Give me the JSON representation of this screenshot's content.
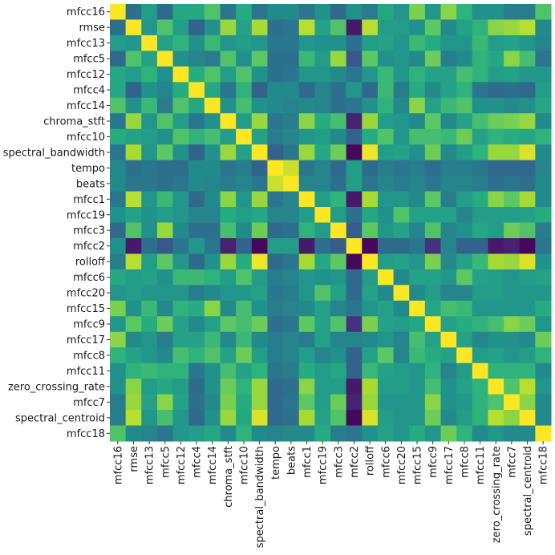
{
  "chart_data": {
    "type": "heatmap",
    "title": "",
    "colormap": "viridis",
    "value_range": [
      -1,
      1
    ],
    "colorbar": false,
    "labels": [
      "mfcc16",
      "rmse",
      "mfcc13",
      "mfcc5",
      "mfcc12",
      "mfcc4",
      "mfcc14",
      "chroma_stft",
      "mfcc10",
      "spectral_bandwidth",
      "tempo",
      "beats",
      "mfcc1",
      "mfcc19",
      "mfcc3",
      "mfcc2",
      "rolloff",
      "mfcc6",
      "mfcc20",
      "mfcc15",
      "mfcc9",
      "mfcc17",
      "mfcc8",
      "mfcc11",
      "zero_crossing_rate",
      "mfcc7",
      "spectral_centroid",
      "mfcc18"
    ],
    "symmetric": true,
    "values_upper": [
      [
        1,
        -0.25,
        0.1,
        -0.3,
        0.2,
        0.2,
        0.45,
        -0.2,
        0.25,
        -0.2,
        -0.05,
        -0.05,
        -0.2,
        0,
        -0.3,
        0,
        -0.15,
        0.2,
        0.05,
        0.6,
        0.05,
        0.65,
        0.3,
        0,
        0,
        -0.15,
        -0.15,
        0.45
      ],
      [
        1,
        0.05,
        0.45,
        0.1,
        -0.35,
        0,
        0.7,
        0.15,
        0.75,
        -0.25,
        -0.2,
        0.8,
        0.15,
        0.45,
        -0.85,
        0.8,
        0.1,
        0.1,
        0,
        0.5,
        -0.05,
        0.15,
        0.3,
        0.65,
        0.7,
        0.8,
        -0.05
      ],
      [
        1,
        0.15,
        0.3,
        0,
        0.35,
        0.05,
        0.1,
        0.05,
        -0.2,
        -0.2,
        0.05,
        0,
        0,
        -0.25,
        0.1,
        0.15,
        0.05,
        0.35,
        0.25,
        0.05,
        0.05,
        0.35,
        0.1,
        0.15,
        0.05,
        -0.1
      ],
      [
        1,
        0,
        -0.1,
        -0.15,
        0.45,
        0,
        0.5,
        -0.25,
        -0.25,
        0.35,
        0.1,
        0.7,
        -0.45,
        0.5,
        0,
        0.05,
        -0.05,
        0.55,
        -0.15,
        -0.05,
        0.3,
        0.2,
        0.65,
        0.4,
        -0.2
      ],
      [
        1,
        0.25,
        0.45,
        0.1,
        0.45,
        0,
        -0.25,
        -0.2,
        0.05,
        0.05,
        -0.05,
        -0.2,
        0.05,
        0.35,
        0.05,
        0.3,
        0.15,
        0.15,
        0.4,
        0.3,
        0.1,
        0.15,
        0.05,
        0.05
      ],
      [
        1,
        0.2,
        -0.2,
        0.3,
        -0.35,
        -0.05,
        -0.05,
        -0.3,
        -0.1,
        -0.25,
        0.05,
        -0.3,
        0.35,
        -0.15,
        0.25,
        -0.05,
        0.15,
        0.3,
        -0.2,
        -0.3,
        -0.25,
        -0.3,
        0.1
      ],
      [
        1,
        0,
        0.4,
        0,
        -0.05,
        -0.1,
        -0.05,
        -0.1,
        -0.25,
        -0.2,
        0,
        0.3,
        -0.05,
        0.65,
        0.15,
        0.35,
        0.45,
        0,
        0,
        -0.05,
        0,
        0.2
      ],
      [
        1,
        0.1,
        0.7,
        -0.2,
        -0.15,
        0.65,
        0.25,
        0.4,
        -0.8,
        0.7,
        0.1,
        0.05,
        -0.05,
        0.5,
        -0.05,
        0.15,
        0.4,
        0.55,
        0.6,
        0.7,
        -0.05
      ],
      [
        1,
        0.15,
        -0.15,
        -0.1,
        0.05,
        0.1,
        -0.05,
        -0.35,
        0.25,
        0.45,
        0.05,
        0.4,
        0.4,
        0.35,
        0.55,
        0.15,
        0.3,
        0.25,
        0.2,
        0.3
      ],
      [
        1,
        -0.35,
        -0.2,
        0.7,
        0.2,
        0.55,
        -0.95,
        0.95,
        0.1,
        0.15,
        0,
        0.55,
        -0.05,
        0.1,
        0.3,
        0.7,
        0.7,
        0.9,
        -0.05
      ],
      [
        1,
        0.85,
        -0.2,
        -0.1,
        -0.3,
        0.1,
        -0.3,
        -0.15,
        -0.2,
        -0.15,
        -0.25,
        -0.15,
        -0.15,
        -0.2,
        -0.3,
        -0.3,
        -0.3,
        -0.1
      ],
      [
        1,
        -0.1,
        -0.1,
        -0.25,
        0.1,
        -0.2,
        -0.1,
        -0.15,
        -0.1,
        -0.2,
        -0.1,
        -0.1,
        -0.15,
        -0.25,
        -0.2,
        -0.25,
        -0.05
      ],
      [
        1,
        0.1,
        0.3,
        -0.85,
        0.75,
        0.05,
        0.05,
        -0.05,
        0.5,
        -0.15,
        0.1,
        0.25,
        0.65,
        0.5,
        0.75,
        -0.05
      ],
      [
        1,
        0.1,
        -0.25,
        0.2,
        0,
        0.45,
        0.15,
        0.15,
        0.15,
        -0.1,
        0.1,
        0.1,
        0.1,
        0.15,
        0.25
      ],
      [
        1,
        -0.4,
        0.5,
        0.05,
        0.15,
        -0.1,
        0.45,
        -0.1,
        0,
        0.2,
        0.1,
        0.55,
        0.45,
        -0.15
      ],
      [
        1,
        -0.95,
        -0.3,
        -0.3,
        -0.2,
        -0.7,
        -0.1,
        -0.35,
        -0.35,
        -0.85,
        -0.8,
        -0.95,
        -0.2
      ],
      [
        1,
        0.1,
        0.15,
        0.05,
        0.6,
        -0.05,
        0.15,
        0.35,
        0.75,
        0.7,
        0.9,
        0
      ],
      [
        1,
        -0.05,
        0.15,
        0.15,
        0.05,
        0.5,
        0.15,
        0.1,
        0.05,
        0.1,
        0.15
      ],
      [
        1,
        -0.05,
        0.1,
        -0.1,
        -0.1,
        0.1,
        0.1,
        0.05,
        0.05,
        0.05
      ],
      [
        1,
        0.2,
        0.4,
        0.35,
        0.05,
        0.05,
        0.05,
        0.05,
        0.25
      ],
      [
        1,
        0.15,
        0.25,
        0.3,
        0.4,
        0.65,
        0.55,
        0.05
      ],
      [
        1,
        0.15,
        -0.1,
        0,
        0,
        -0.05,
        0.55
      ],
      [
        1,
        0.1,
        0.15,
        0.05,
        0.1,
        0.3
      ],
      [
        1,
        0.3,
        0.3,
        0.3,
        -0.05
      ],
      [
        1,
        0.45,
        0.8,
        0.05
      ],
      [
        1,
        0.65,
        -0.05
      ],
      [
        1,
        -0.05
      ],
      [
        1
      ]
    ]
  }
}
